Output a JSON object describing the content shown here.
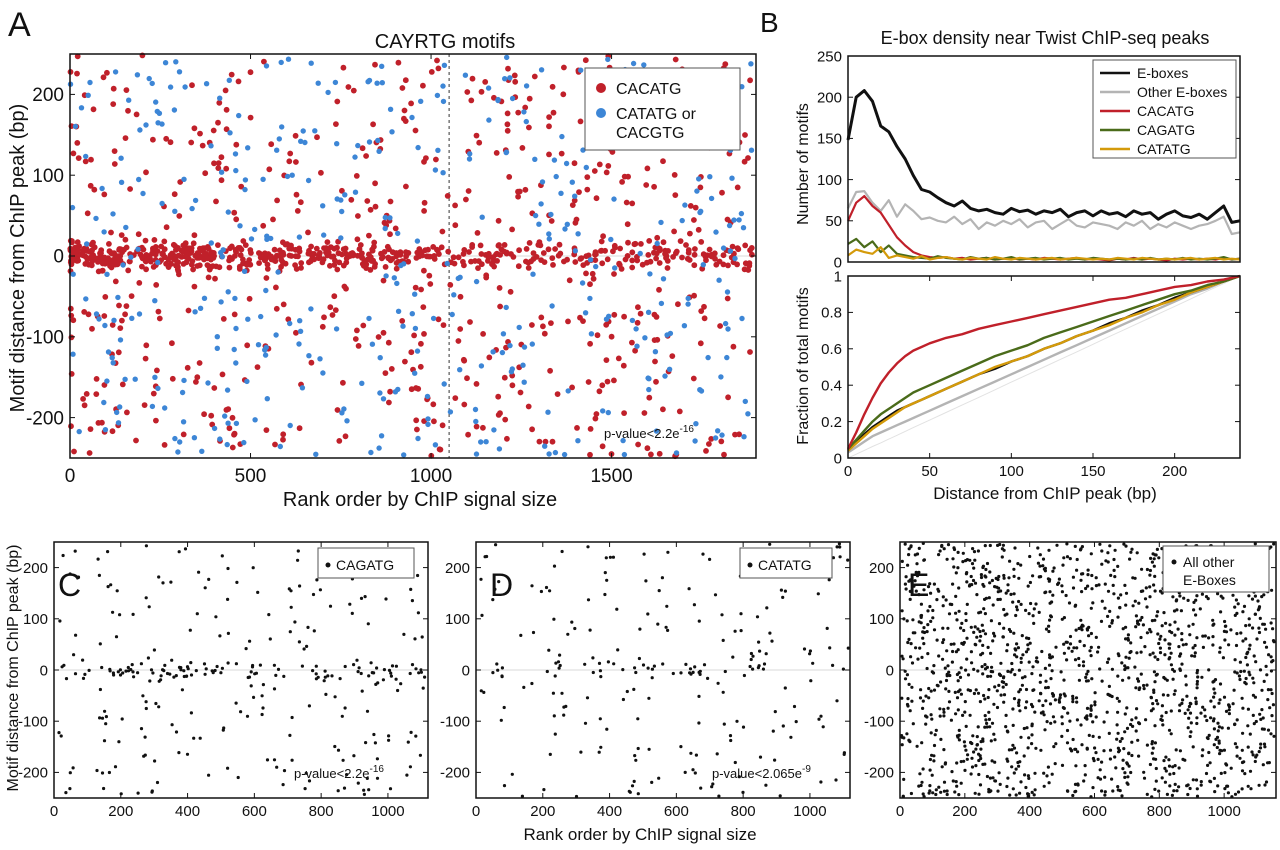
{
  "panel_letters": {
    "a": "A",
    "b": "B",
    "c": "C",
    "d": "D",
    "e": "E"
  },
  "colors": {
    "red": "#c0202a",
    "blue": "#3d86d6",
    "black": "#111111",
    "gray": "#b4b4b4",
    "green": "#4a6b1a",
    "orange": "#d49a0a",
    "zero_line": "#d8d8d8",
    "pvalue_dots": "#f2c6c6"
  },
  "chart_data": [
    {
      "id": "A",
      "type": "scatter",
      "title": "CAYRTG motifs",
      "xlabel": "Rank order by ChIP signal size",
      "ylabel": "Motif distance from ChIP peak (bp)",
      "xlim": [
        0,
        1900
      ],
      "ylim": [
        -250,
        250
      ],
      "xticks": [
        0,
        500,
        1000,
        1500
      ],
      "yticks": [
        -200,
        -100,
        0,
        100,
        200
      ],
      "vline_x": 1050,
      "annotation": "p-value<2.2e",
      "annotation_sup": "-16",
      "series": [
        {
          "name": "CACATG",
          "color": "#c0202a",
          "n_points": 1150,
          "distribution": "concentrated near 0 bp, dense for ranks 0-900"
        },
        {
          "name": "CATATG or CACGTG",
          "color": "#3d86d6",
          "n_points": 420,
          "distribution": "uniform across -250 to 250 bp"
        }
      ],
      "legend": [
        "CACATG",
        "CATATG or",
        "CACGTG"
      ],
      "legend_loc": "top-right"
    },
    {
      "id": "B-top",
      "type": "line",
      "title": "E-box density near Twist ChIP-seq peaks",
      "xlabel": "",
      "ylabel": "Number of motifs",
      "xlim": [
        0,
        240
      ],
      "ylim": [
        0,
        250
      ],
      "yticks": [
        0,
        50,
        100,
        150,
        200,
        250
      ],
      "x": [
        0,
        5,
        10,
        15,
        20,
        25,
        30,
        35,
        40,
        45,
        50,
        55,
        60,
        65,
        70,
        75,
        80,
        85,
        90,
        95,
        100,
        105,
        110,
        115,
        120,
        125,
        130,
        135,
        140,
        145,
        150,
        155,
        160,
        165,
        170,
        175,
        180,
        185,
        190,
        195,
        200,
        205,
        210,
        215,
        220,
        225,
        230,
        235,
        240
      ],
      "series": [
        {
          "name": "E-boxes",
          "color": "#111111",
          "values": [
            148,
            200,
            208,
            195,
            165,
            158,
            140,
            125,
            105,
            88,
            85,
            78,
            72,
            68,
            74,
            65,
            62,
            64,
            60,
            58,
            65,
            61,
            63,
            58,
            62,
            60,
            64,
            55,
            60,
            62,
            56,
            62,
            58,
            60,
            55,
            62,
            58,
            60,
            52,
            58,
            62,
            56,
            54,
            58,
            52,
            60,
            68,
            48,
            50
          ]
        },
        {
          "name": "Other E-boxes",
          "color": "#b4b4b4",
          "values": [
            65,
            85,
            86,
            72,
            62,
            75,
            55,
            70,
            62,
            52,
            54,
            50,
            48,
            55,
            46,
            52,
            40,
            48,
            44,
            50,
            46,
            52,
            42,
            48,
            50,
            40,
            46,
            52,
            44,
            42,
            48,
            46,
            44,
            40,
            48,
            44,
            50,
            40,
            46,
            42,
            48,
            44,
            40,
            44,
            46,
            50,
            55,
            34,
            36
          ]
        },
        {
          "name": "CACATG",
          "color": "#c0202a",
          "values": [
            50,
            72,
            80,
            68,
            60,
            45,
            30,
            20,
            12,
            8,
            6,
            5,
            6,
            4,
            5,
            3,
            4,
            5,
            3,
            4,
            5,
            3,
            4,
            3,
            5,
            4,
            3,
            4,
            5,
            3,
            4,
            3,
            2,
            4,
            3,
            5,
            3,
            4,
            3,
            2,
            4,
            3,
            4,
            3,
            4,
            3,
            5,
            3,
            4
          ]
        },
        {
          "name": "CAGATG",
          "color": "#4a6b1a",
          "values": [
            22,
            28,
            18,
            25,
            12,
            20,
            10,
            8,
            6,
            5,
            4,
            7,
            5,
            4,
            3,
            6,
            4,
            5,
            3,
            4,
            6,
            3,
            4,
            5,
            3,
            4,
            5,
            3,
            4,
            3,
            5,
            4,
            3,
            4,
            3,
            4,
            3,
            5,
            3,
            4,
            3,
            5,
            3,
            4,
            3,
            4,
            6,
            3,
            4
          ]
        },
        {
          "name": "CATATG",
          "color": "#d49a0a",
          "values": [
            8,
            15,
            12,
            10,
            18,
            5,
            8,
            6,
            4,
            7,
            3,
            5,
            6,
            4,
            3,
            5,
            4,
            3,
            6,
            4,
            3,
            5,
            4,
            3,
            4,
            5,
            3,
            4,
            5,
            4,
            3,
            4,
            3,
            5,
            4,
            3,
            5,
            4,
            3,
            4,
            3,
            4,
            5,
            3,
            4,
            5,
            3,
            4,
            3
          ]
        }
      ],
      "legend_loc": "top-right"
    },
    {
      "id": "B-bottom",
      "type": "line",
      "xlabel": "Distance from ChIP peak (bp)",
      "ylabel": "Fraction of total motifs",
      "xlim": [
        0,
        240
      ],
      "ylim": [
        0,
        1
      ],
      "xticks": [
        0,
        50,
        100,
        150,
        200
      ],
      "yticks": [
        0,
        0.2,
        0.4,
        0.6,
        0.8,
        1
      ],
      "ytick_labels": [
        "0",
        "0.2",
        "0.4",
        "0.6",
        "0.8",
        "1"
      ],
      "x": [
        0,
        5,
        10,
        15,
        20,
        25,
        30,
        35,
        40,
        45,
        50,
        60,
        70,
        80,
        90,
        100,
        110,
        120,
        130,
        140,
        150,
        160,
        170,
        180,
        190,
        200,
        210,
        220,
        230,
        240
      ],
      "series": [
        {
          "name": "CACATG",
          "color": "#c0202a",
          "values": [
            0.05,
            0.14,
            0.24,
            0.33,
            0.41,
            0.47,
            0.52,
            0.56,
            0.59,
            0.61,
            0.63,
            0.66,
            0.68,
            0.71,
            0.73,
            0.75,
            0.77,
            0.79,
            0.81,
            0.83,
            0.85,
            0.87,
            0.88,
            0.9,
            0.92,
            0.94,
            0.95,
            0.97,
            0.98,
            1.0
          ]
        },
        {
          "name": "CAGATG",
          "color": "#4a6b1a",
          "values": [
            0.05,
            0.1,
            0.15,
            0.2,
            0.24,
            0.27,
            0.3,
            0.33,
            0.36,
            0.38,
            0.4,
            0.44,
            0.48,
            0.52,
            0.56,
            0.59,
            0.62,
            0.66,
            0.69,
            0.72,
            0.75,
            0.78,
            0.81,
            0.84,
            0.87,
            0.9,
            0.92,
            0.95,
            0.97,
            1.0
          ]
        },
        {
          "name": "CATATG",
          "color": "#d49a0a",
          "values": [
            0.04,
            0.08,
            0.12,
            0.16,
            0.19,
            0.22,
            0.25,
            0.28,
            0.3,
            0.32,
            0.34,
            0.38,
            0.42,
            0.46,
            0.5,
            0.53,
            0.56,
            0.6,
            0.63,
            0.67,
            0.7,
            0.73,
            0.77,
            0.8,
            0.84,
            0.87,
            0.91,
            0.94,
            0.97,
            1.0
          ]
        },
        {
          "name": "E-boxes",
          "color": "#111111",
          "values": [
            0.04,
            0.09,
            0.13,
            0.17,
            0.2,
            0.23,
            0.26,
            0.28,
            0.3,
            0.32,
            0.34,
            0.38,
            0.42,
            0.46,
            0.49,
            0.53,
            0.56,
            0.6,
            0.63,
            0.67,
            0.7,
            0.74,
            0.77,
            0.81,
            0.84,
            0.88,
            0.91,
            0.94,
            0.97,
            1.0
          ]
        },
        {
          "name": "Other E-boxes",
          "color": "#b4b4b4",
          "values": [
            0.03,
            0.06,
            0.09,
            0.12,
            0.14,
            0.16,
            0.18,
            0.2,
            0.22,
            0.24,
            0.26,
            0.3,
            0.34,
            0.38,
            0.42,
            0.46,
            0.5,
            0.54,
            0.58,
            0.62,
            0.66,
            0.7,
            0.74,
            0.78,
            0.82,
            0.86,
            0.9,
            0.93,
            0.97,
            1.0
          ]
        },
        {
          "name": "uniform",
          "color": "#e2e2e2",
          "values": [
            0.0,
            0.021,
            0.042,
            0.063,
            0.083,
            0.104,
            0.125,
            0.146,
            0.167,
            0.188,
            0.208,
            0.25,
            0.292,
            0.333,
            0.375,
            0.417,
            0.458,
            0.5,
            0.542,
            0.583,
            0.625,
            0.667,
            0.708,
            0.75,
            0.792,
            0.833,
            0.875,
            0.917,
            0.958,
            1.0
          ]
        }
      ]
    },
    {
      "id": "C",
      "type": "scatter",
      "xlabel": "",
      "ylabel": "Motif distance from ChIP peak (bp)",
      "xlim": [
        0,
        1120
      ],
      "ylim": [
        -250,
        250
      ],
      "xticks": [
        0,
        200,
        400,
        600,
        800,
        1000
      ],
      "yticks": [
        -200,
        -100,
        0,
        100,
        200
      ],
      "legend": "CAGATG",
      "annotation": "p-value<2.2e",
      "annotation_sup": "-16",
      "series": [
        {
          "name": "CAGATG",
          "color": "#111111",
          "n_points": 300,
          "distribution": "mild concentration near 0 bp"
        }
      ]
    },
    {
      "id": "D",
      "type": "scatter",
      "xlabel": "Rank order by ChIP signal size",
      "ylabel": "",
      "xlim": [
        0,
        1120
      ],
      "ylim": [
        -250,
        250
      ],
      "xticks": [
        0,
        200,
        400,
        600,
        800,
        1000
      ],
      "yticks": [
        -200,
        -100,
        0,
        100,
        200
      ],
      "legend": "CATATG",
      "annotation": "p-value<2.065e",
      "annotation_sup": "-9",
      "series": [
        {
          "name": "CATATG",
          "color": "#111111",
          "n_points": 230,
          "distribution": "mild concentration near 0 bp"
        }
      ]
    },
    {
      "id": "E",
      "type": "scatter",
      "xlabel": "",
      "ylabel": "",
      "xlim": [
        0,
        1160
      ],
      "ylim": [
        -250,
        250
      ],
      "xticks": [
        0,
        200,
        400,
        600,
        800,
        1000
      ],
      "yticks": [
        -200,
        -100,
        0,
        100,
        200
      ],
      "legend": [
        "All other",
        "E-Boxes"
      ],
      "series": [
        {
          "name": "All other E-Boxes",
          "color": "#111111",
          "n_points": 1500,
          "distribution": "uniform"
        }
      ]
    }
  ]
}
